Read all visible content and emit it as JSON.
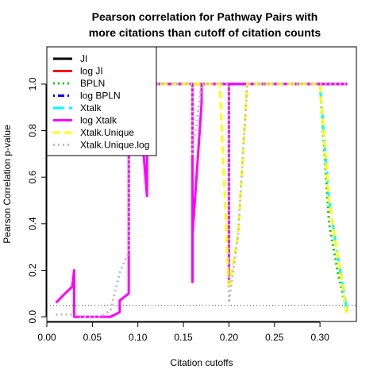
{
  "chart_data": {
    "type": "line",
    "title_line1": "Pearson correlation for Pathway Pairs with",
    "title_line2": "more citations than cutoff of citation counts",
    "xlabel": "Citation cutoffs",
    "ylabel": "Pearson Correlation p-value",
    "xlim": [
      0,
      0.34
    ],
    "ylim": [
      -0.02,
      1.16
    ],
    "xticks": [
      "0.00",
      "0.05",
      "0.10",
      "0.15",
      "0.20",
      "0.25",
      "0.30"
    ],
    "yticks": [
      "0.0",
      "0.2",
      "0.4",
      "0.6",
      "0.8",
      "1.0"
    ],
    "reference_line": {
      "y": 0.05,
      "style": "dotted",
      "color": "#555555"
    },
    "legend_position": "top-left",
    "series": [
      {
        "name": "JI",
        "color": "#000000",
        "dash": "solid",
        "points": [
          [
            0.1,
            1.0
          ],
          [
            0.33,
            1.0
          ]
        ]
      },
      {
        "name": "log JI",
        "color": "#ff0000",
        "dash": "solid",
        "points": [
          [
            0.1,
            1.0
          ],
          [
            0.33,
            1.0
          ]
        ]
      },
      {
        "name": "BPLN",
        "color": "#00cd00",
        "dash": "dotted",
        "points": [
          [
            0.1,
            1.0
          ],
          [
            0.3,
            1.0
          ],
          [
            0.31,
            0.4
          ],
          [
            0.32,
            0.18
          ],
          [
            0.33,
            0.02
          ]
        ]
      },
      {
        "name": "log BPLN",
        "color": "#0000ff",
        "dash": "dotdash",
        "points": [
          [
            0.1,
            1.0
          ],
          [
            0.33,
            1.0
          ]
        ]
      },
      {
        "name": "Xtalk",
        "color": "#00ffff",
        "dash": "longdash",
        "points": [
          [
            0.1,
            1.0
          ],
          [
            0.3,
            1.0
          ],
          [
            0.31,
            0.5
          ],
          [
            0.32,
            0.25
          ],
          [
            0.33,
            0.02
          ]
        ]
      },
      {
        "name": "log Xtalk",
        "color": "#ff00ff",
        "dash": "solid",
        "points": [
          [
            0.01,
            0.06
          ],
          [
            0.02,
            0.1
          ],
          [
            0.028,
            0.13
          ],
          [
            0.03,
            0.2
          ],
          [
            0.03,
            0.0
          ],
          [
            0.04,
            0.0
          ],
          [
            0.05,
            0.0
          ],
          [
            0.06,
            0.0
          ],
          [
            0.07,
            0.0
          ],
          [
            0.08,
            0.02
          ],
          [
            0.08,
            0.07
          ],
          [
            0.09,
            0.1
          ],
          [
            0.09,
            1.0
          ],
          [
            0.1,
            1.0
          ],
          [
            0.11,
            0.52
          ],
          [
            0.11,
            1.0
          ],
          [
            0.16,
            1.0
          ],
          [
            0.16,
            0.15
          ],
          [
            0.16,
            0.35
          ],
          [
            0.17,
            0.92
          ],
          [
            0.17,
            1.0
          ],
          [
            0.2,
            1.0
          ],
          [
            0.2,
            0.15
          ],
          [
            0.2,
            1.0
          ],
          [
            0.33,
            1.0
          ]
        ]
      },
      {
        "name": "Xtalk.Unique",
        "color": "#ffff00",
        "dash": "dashed",
        "points": [
          [
            0.1,
            1.0
          ],
          [
            0.19,
            1.0
          ],
          [
            0.2,
            0.12
          ],
          [
            0.21,
            0.35
          ],
          [
            0.22,
            1.0
          ],
          [
            0.3,
            1.0
          ],
          [
            0.31,
            0.5
          ],
          [
            0.32,
            0.25
          ],
          [
            0.33,
            0.0
          ]
        ]
      },
      {
        "name": "Xtalk.Unique.log",
        "color": "#bebebe",
        "dash": "dotted",
        "points": [
          [
            0.01,
            0.01
          ],
          [
            0.02,
            0.01
          ],
          [
            0.03,
            0.01
          ],
          [
            0.04,
            0.0
          ],
          [
            0.05,
            0.0
          ],
          [
            0.06,
            0.0
          ],
          [
            0.07,
            0.03
          ],
          [
            0.08,
            0.19
          ],
          [
            0.09,
            0.28
          ],
          [
            0.09,
            1.0
          ],
          [
            0.16,
            1.0
          ],
          [
            0.16,
            0.7
          ],
          [
            0.17,
            1.0
          ],
          [
            0.2,
            1.0
          ],
          [
            0.2,
            0.06
          ],
          [
            0.21,
            0.35
          ],
          [
            0.22,
            1.0
          ],
          [
            0.33,
            1.0
          ]
        ]
      }
    ]
  }
}
